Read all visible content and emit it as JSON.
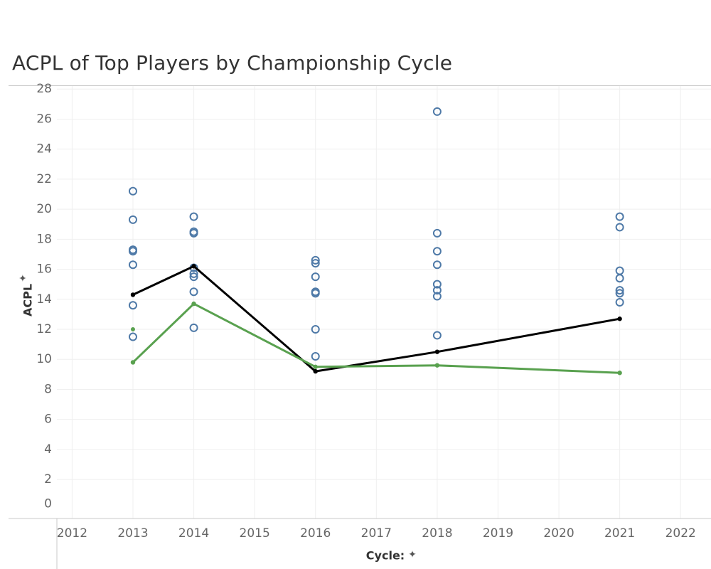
{
  "title": "ACPL of Top Players by Championship Cycle",
  "chart_data": {
    "type": "scatter",
    "title": "ACPL of Top Players by Championship Cycle",
    "xlabel": "Cycle:",
    "ylabel": "ACPL",
    "xlim": [
      2011.75,
      2022.5
    ],
    "ylim": [
      -0.6,
      28.2
    ],
    "x_ticks": [
      "2012",
      "2013",
      "2014",
      "2015",
      "2016",
      "2017",
      "2018",
      "2019",
      "2020",
      "2021",
      "2022"
    ],
    "y_ticks": [
      "0",
      "2",
      "4",
      "6",
      "8",
      "10",
      "12",
      "14",
      "16",
      "18",
      "20",
      "22",
      "24",
      "26",
      "28"
    ],
    "grid": true,
    "x_pin_icon": "pin-icon",
    "y_pin_icon": "pin-icon",
    "series": [
      {
        "kind": "points",
        "marker": "hollow-circle",
        "color": "#4e79a7",
        "points": [
          {
            "x": 2013,
            "y": 21.2
          },
          {
            "x": 2013,
            "y": 19.3
          },
          {
            "x": 2013,
            "y": 17.3
          },
          {
            "x": 2013,
            "y": 17.2
          },
          {
            "x": 2013,
            "y": 16.3
          },
          {
            "x": 2013,
            "y": 13.6
          },
          {
            "x": 2013,
            "y": 11.5
          },
          {
            "x": 2014,
            "y": 19.5
          },
          {
            "x": 2014,
            "y": 18.5
          },
          {
            "x": 2014,
            "y": 18.4
          },
          {
            "x": 2014,
            "y": 16.1
          },
          {
            "x": 2014,
            "y": 15.7
          },
          {
            "x": 2014,
            "y": 15.5
          },
          {
            "x": 2014,
            "y": 14.5
          },
          {
            "x": 2014,
            "y": 12.1
          },
          {
            "x": 2016,
            "y": 16.6
          },
          {
            "x": 2016,
            "y": 16.4
          },
          {
            "x": 2016,
            "y": 15.5
          },
          {
            "x": 2016,
            "y": 14.5
          },
          {
            "x": 2016,
            "y": 14.4
          },
          {
            "x": 2016,
            "y": 12.0
          },
          {
            "x": 2016,
            "y": 10.2
          },
          {
            "x": 2018,
            "y": 26.5
          },
          {
            "x": 2018,
            "y": 18.4
          },
          {
            "x": 2018,
            "y": 17.2
          },
          {
            "x": 2018,
            "y": 16.3
          },
          {
            "x": 2018,
            "y": 15.0
          },
          {
            "x": 2018,
            "y": 14.6
          },
          {
            "x": 2018,
            "y": 14.2
          },
          {
            "x": 2018,
            "y": 11.6
          },
          {
            "x": 2021,
            "y": 19.5
          },
          {
            "x": 2021,
            "y": 18.8
          },
          {
            "x": 2021,
            "y": 15.9
          },
          {
            "x": 2021,
            "y": 15.4
          },
          {
            "x": 2021,
            "y": 14.6
          },
          {
            "x": 2021,
            "y": 14.4
          },
          {
            "x": 2021,
            "y": 13.8
          }
        ]
      },
      {
        "kind": "line",
        "color": "#000000",
        "points": [
          {
            "x": 2013,
            "y": 14.3
          },
          {
            "x": 2014,
            "y": 16.2
          },
          {
            "x": 2016,
            "y": 9.2
          },
          {
            "x": 2018,
            "y": 10.5
          },
          {
            "x": 2021,
            "y": 12.7
          }
        ]
      },
      {
        "kind": "line",
        "color": "#59a14f",
        "points": [
          {
            "x": 2013,
            "y": 9.8
          },
          {
            "x": 2014,
            "y": 13.7
          },
          {
            "x": 2016,
            "y": 9.5
          },
          {
            "x": 2018,
            "y": 9.6
          },
          {
            "x": 2021,
            "y": 9.1
          }
        ]
      },
      {
        "kind": "points",
        "marker": "dot",
        "color": "#59a14f",
        "points": [
          {
            "x": 2013,
            "y": 12.0
          }
        ]
      }
    ]
  }
}
